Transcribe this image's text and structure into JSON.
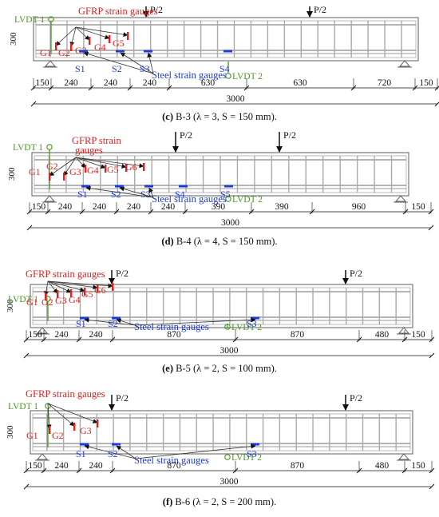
{
  "colors": {
    "gfrp": "#e0201b",
    "steel": "#1f3bd6",
    "lvdt": "#4a9a1e",
    "ink": "#111111"
  },
  "panels": [
    {
      "id": "c",
      "caption": {
        "letter": "(c)",
        "text": "B-3 (λ = 3, S = 150 mm)."
      },
      "height_label": "300",
      "load_label": "P/2",
      "lvdt1": "LVDT 1",
      "lvdt2": "LVDT 2",
      "gfrp_title": "GFRP strain gauges",
      "gfrp": [
        "G1",
        "G2",
        "G3",
        "G4",
        "G5"
      ],
      "steel": [
        "S1",
        "S2",
        "S3",
        "S4"
      ],
      "steel_title": "Steel strain gauges",
      "dims": [
        "150",
        "240",
        "240",
        "240",
        "630",
        "630",
        "720",
        "150"
      ],
      "total": "3000"
    },
    {
      "id": "d",
      "caption": {
        "letter": "(d)",
        "text": "B-4 (λ = 4, S = 150 mm)."
      },
      "height_label": "300",
      "load_label": "P/2",
      "lvdt1": "LVDT 1",
      "lvdt2": "LVDT 2",
      "gfrp_title_1": "GFRP strain",
      "gfrp_title_2": "gauges",
      "gfrp": [
        "G1",
        "G2",
        "G3",
        "G4",
        "G5",
        "G6"
      ],
      "steel": [
        "S1",
        "S2",
        "S3",
        "S4",
        "S5"
      ],
      "steel_title": "Steel strain gauges",
      "dims": [
        "150",
        "240",
        "240",
        "240",
        "240",
        "390",
        "390",
        "960",
        "150"
      ],
      "total": "3000"
    },
    {
      "id": "e",
      "caption": {
        "letter": "(e)",
        "text": "B-5 (λ = 2, S = 100 mm)."
      },
      "height_label": "300",
      "load_label": "P/2",
      "lvdt1": "LVDT 1",
      "lvdt2": "LVDT 2",
      "gfrp_title": "GFRP strain gauges",
      "gfrp": [
        "G1",
        "G2",
        "G3",
        "G4",
        "G5",
        "G6"
      ],
      "steel": [
        "S1",
        "S2",
        "S3"
      ],
      "steel_title": "Steel strain gauges",
      "dims": [
        "150",
        "240",
        "240",
        "870",
        "870",
        "480",
        "150"
      ],
      "total": "3000"
    },
    {
      "id": "f",
      "caption": {
        "letter": "(f)",
        "text": "B-6 (λ = 2, S = 200 mm)."
      },
      "height_label": "300",
      "load_label": "P/2",
      "lvdt1": "LVDT 1",
      "lvdt2": "LVDT 2",
      "gfrp_title": "GFRP strain gauges",
      "gfrp": [
        "G1",
        "G2",
        "G3"
      ],
      "steel": [
        "S1",
        "S2",
        "S3"
      ],
      "steel_title": "Steel strain gauges",
      "dims": [
        "150",
        "240",
        "240",
        "870",
        "870",
        "480",
        "150"
      ],
      "total": "3000"
    }
  ]
}
